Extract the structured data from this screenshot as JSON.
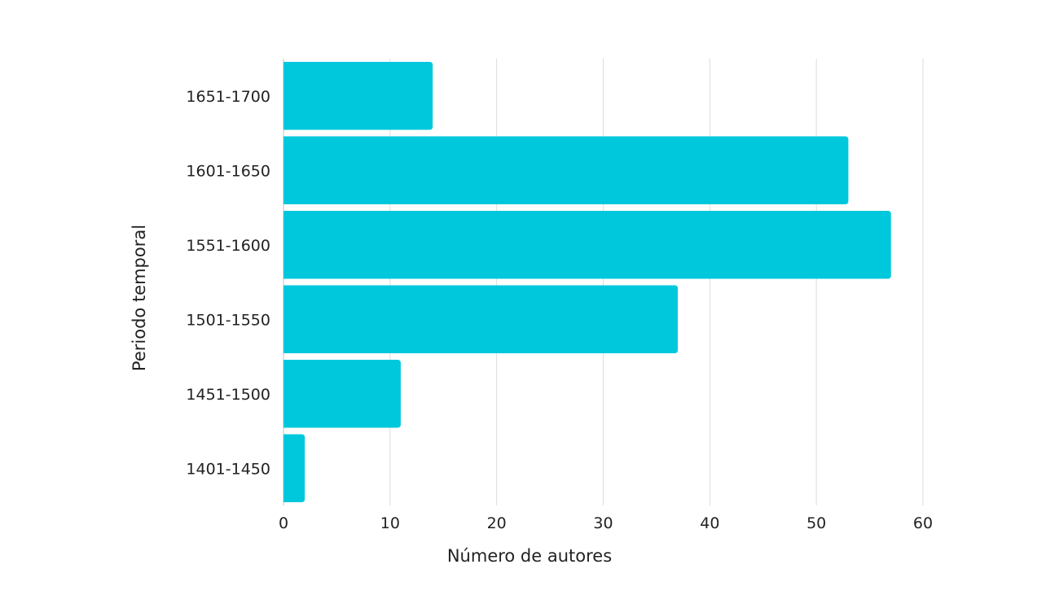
{
  "chart_data": {
    "type": "bar",
    "orientation": "horizontal",
    "categories": [
      "1651-1700",
      "1601-1650",
      "1551-1600",
      "1501-1550",
      "1451-1500",
      "1401-1450"
    ],
    "values": [
      14,
      53,
      57,
      37,
      11,
      2
    ],
    "xlabel": "Número de autores",
    "ylabel": "Periodo temporal",
    "xlim": [
      0,
      60
    ],
    "xticks": [
      0,
      10,
      20,
      30,
      40,
      50,
      60
    ],
    "grid": "vertical",
    "legend": "none",
    "bar_color": "#00c8dc",
    "grid_color": "#dddddd"
  }
}
